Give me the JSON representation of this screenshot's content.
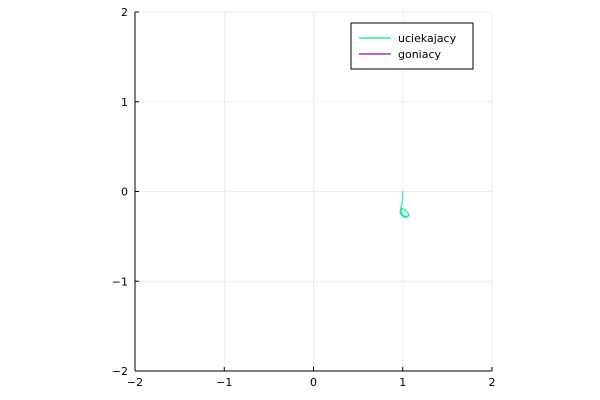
{
  "chart_data": {
    "type": "line",
    "title": "",
    "xlabel": "",
    "ylabel": "",
    "xlim": [
      -2,
      2
    ],
    "ylim": [
      -2,
      2
    ],
    "xticks": [
      -2,
      -1,
      0,
      1,
      2
    ],
    "yticks": [
      -2,
      -1,
      0,
      1,
      2
    ],
    "xtick_labels": [
      "−2",
      "−1",
      "0",
      "1",
      "2"
    ],
    "ytick_labels": [
      "−2",
      "−1",
      "0",
      "1",
      "2"
    ],
    "grid": true,
    "legend_position": "top-right",
    "series": [
      {
        "name": "uciekajacy",
        "color": "#2ee8b0",
        "x": [
          1.0,
          1.0,
          0.99,
          0.98,
          0.97,
          0.98,
          1.01,
          1.04,
          1.07,
          1.06,
          1.03,
          1.0,
          0.98,
          0.97,
          0.99,
          1.02,
          1.05,
          1.07,
          1.05,
          1.02,
          0.99,
          0.98,
          1.0,
          1.03,
          1.06
        ],
        "y": [
          0.0,
          -0.08,
          -0.14,
          -0.18,
          -0.22,
          -0.25,
          -0.28,
          -0.29,
          -0.27,
          -0.24,
          -0.21,
          -0.19,
          -0.21,
          -0.24,
          -0.27,
          -0.29,
          -0.28,
          -0.26,
          -0.23,
          -0.2,
          -0.19,
          -0.22,
          -0.26,
          -0.28,
          -0.27
        ]
      },
      {
        "name": "goniacy",
        "color": "#9b3fa8",
        "x": [
          1.0
        ],
        "y": [
          -0.25
        ]
      }
    ]
  }
}
